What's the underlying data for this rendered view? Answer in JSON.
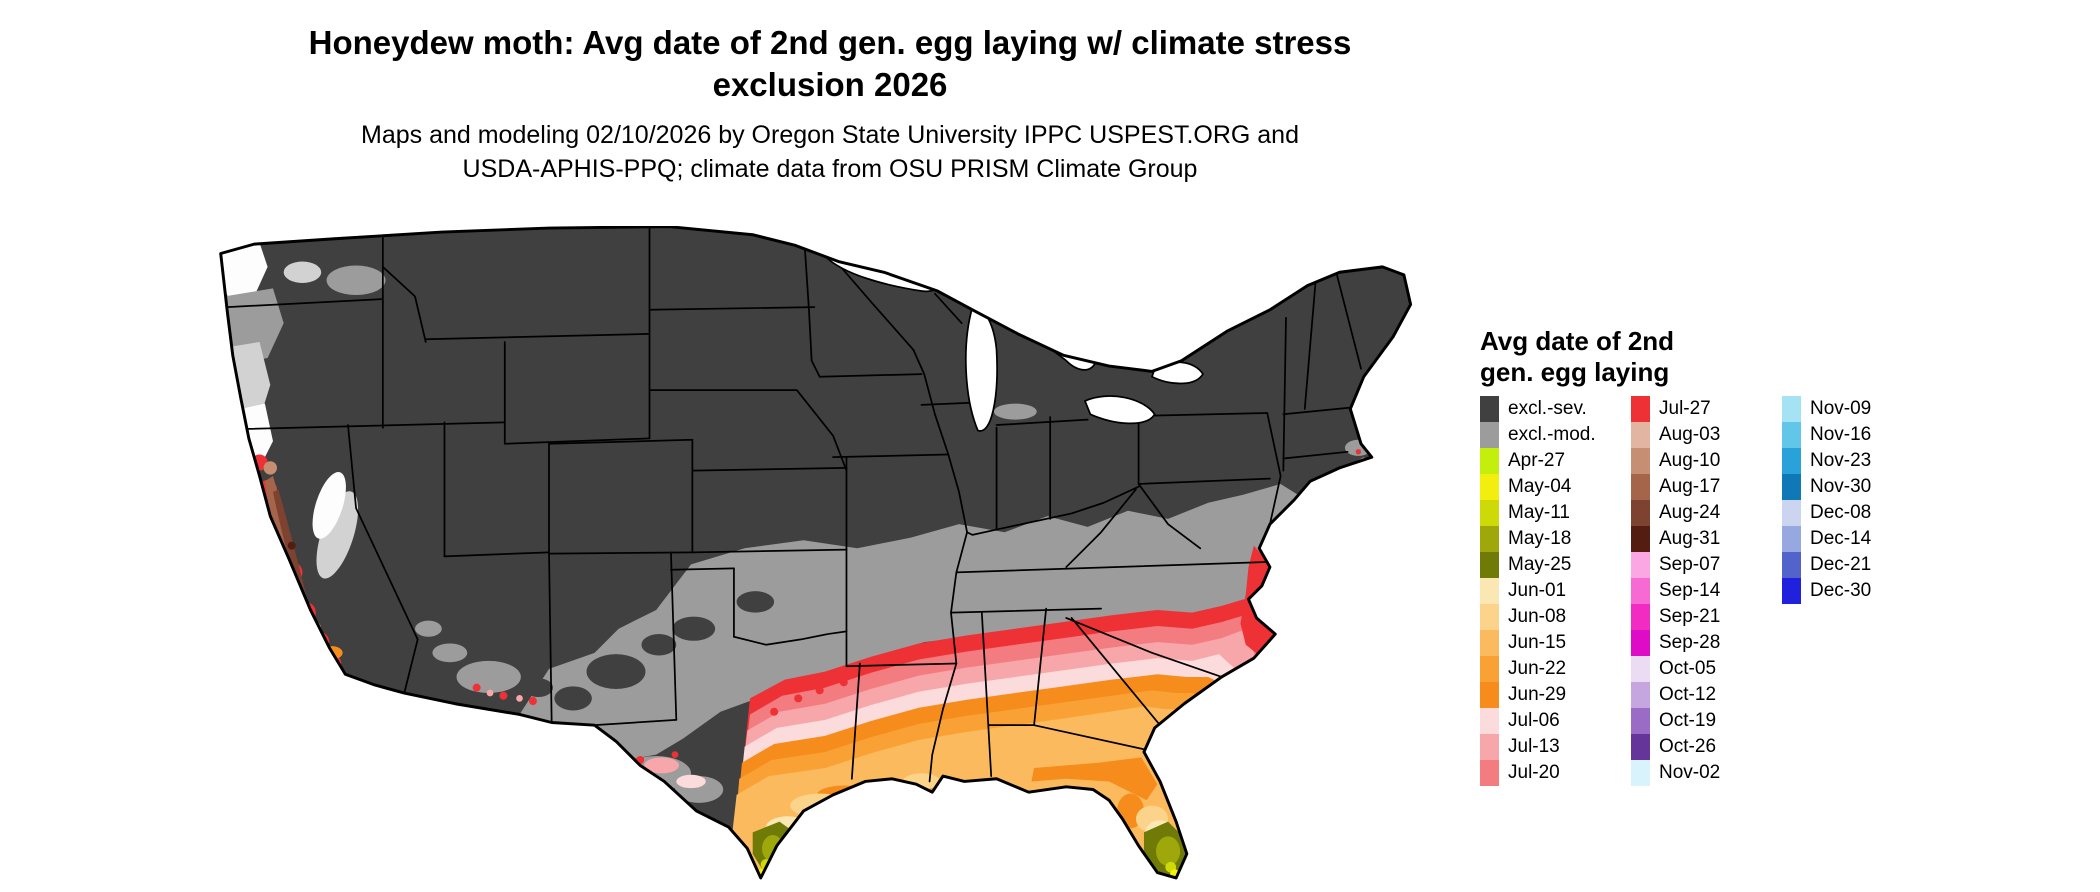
{
  "header": {
    "title_line1": "Honeydew moth: Avg date of 2nd gen. egg laying w/ climate stress",
    "title_line2": "exclusion 2026",
    "subtitle_line1": "Maps and modeling 02/10/2026 by Oregon State University IPPC USPEST.ORG and",
    "subtitle_line2": "USDA-APHIS-PPQ; climate data from OSU PRISM Climate Group"
  },
  "legend": {
    "title_line1": "Avg date of 2nd",
    "title_line2": "gen. egg laying",
    "columns": [
      {
        "items": [
          {
            "label": "excl.-sev.",
            "color_key": "excl_sev"
          },
          {
            "label": "excl.-mod.",
            "color_key": "excl_mod"
          },
          {
            "label": "Apr-27",
            "color_key": "apr27"
          },
          {
            "label": "May-04",
            "color_key": "may04"
          },
          {
            "label": "May-11",
            "color_key": "may11"
          },
          {
            "label": "May-18",
            "color_key": "may18"
          },
          {
            "label": "May-25",
            "color_key": "may25"
          },
          {
            "label": "Jun-01",
            "color_key": "jun01"
          },
          {
            "label": "Jun-08",
            "color_key": "jun08"
          },
          {
            "label": "Jun-15",
            "color_key": "jun15"
          },
          {
            "label": "Jun-22",
            "color_key": "jun22"
          },
          {
            "label": "Jun-29",
            "color_key": "jun29"
          },
          {
            "label": "Jul-06",
            "color_key": "jul06"
          },
          {
            "label": "Jul-13",
            "color_key": "jul13"
          },
          {
            "label": "Jul-20",
            "color_key": "jul20"
          }
        ]
      },
      {
        "items": [
          {
            "label": "Jul-27",
            "color_key": "jul27"
          },
          {
            "label": "Aug-03",
            "color_key": "aug03"
          },
          {
            "label": "Aug-10",
            "color_key": "aug10"
          },
          {
            "label": "Aug-17",
            "color_key": "aug17"
          },
          {
            "label": "Aug-24",
            "color_key": "aug24"
          },
          {
            "label": "Aug-31",
            "color_key": "aug31"
          },
          {
            "label": "Sep-07",
            "color_key": "sep07"
          },
          {
            "label": "Sep-14",
            "color_key": "sep14"
          },
          {
            "label": "Sep-21",
            "color_key": "sep21"
          },
          {
            "label": "Sep-28",
            "color_key": "sep28"
          },
          {
            "label": "Oct-05",
            "color_key": "oct05"
          },
          {
            "label": "Oct-12",
            "color_key": "oct12"
          },
          {
            "label": "Oct-19",
            "color_key": "oct19"
          },
          {
            "label": "Oct-26",
            "color_key": "oct26"
          },
          {
            "label": "Nov-02",
            "color_key": "nov02"
          }
        ]
      },
      {
        "items": [
          {
            "label": "Nov-09",
            "color_key": "nov09"
          },
          {
            "label": "Nov-16",
            "color_key": "nov16"
          },
          {
            "label": "Nov-23",
            "color_key": "nov23"
          },
          {
            "label": "Nov-30",
            "color_key": "nov30"
          },
          {
            "label": "Dec-08",
            "color_key": "dec08"
          },
          {
            "label": "Dec-14",
            "color_key": "dec14"
          },
          {
            "label": "Dec-21",
            "color_key": "dec21"
          },
          {
            "label": "Dec-30",
            "color_key": "dec30"
          }
        ]
      }
    ]
  },
  "palette": {
    "excl_sev": "#404040",
    "excl_mod": "#9c9c9c",
    "apr27": "#c4ef0c",
    "may04": "#f2ef0f",
    "may11": "#ced908",
    "may18": "#9fa80a",
    "may25": "#6f7a07",
    "jun01": "#fbe7b4",
    "jun08": "#fbd38b",
    "jun15": "#fbba5e",
    "jun22": "#faa136",
    "jun29": "#f68c1b",
    "jul06": "#fbdbdb",
    "jul13": "#f7a6a9",
    "jul20": "#f37c80",
    "jul27": "#ee3135",
    "aug03": "#e2b5a3",
    "aug10": "#c68e72",
    "aug17": "#a5654a",
    "aug24": "#7d4330",
    "aug31": "#541d11",
    "sep07": "#fba7e3",
    "sep14": "#f86ad3",
    "sep21": "#f22cc3",
    "sep28": "#de0cc7",
    "oct05": "#ecdcf3",
    "oct12": "#c6a6de",
    "oct19": "#9a6cc5",
    "oct26": "#65359a",
    "nov02": "#d8f3fb",
    "nov09": "#a4e2f4",
    "nov16": "#62c6e9",
    "nov23": "#28a2d8",
    "nov30": "#0e79b6",
    "dec08": "#ccd5ef",
    "dec14": "#97a7e0",
    "dec21": "#5264cc",
    "dec30": "#2020dd",
    "map_white": "#fdfdfd",
    "map_light_gray": "#d2d2d2",
    "lake": "#ffffff"
  }
}
